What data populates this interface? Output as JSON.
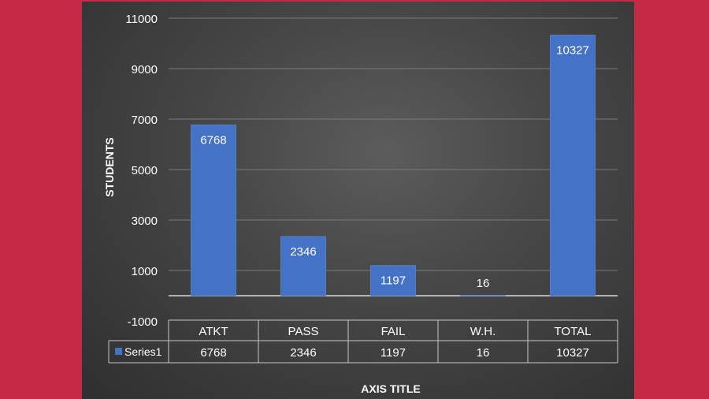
{
  "colors": {
    "background": "#c42a45",
    "panel": "#474747",
    "bar": "#4472c4",
    "text": "#ffffff",
    "grid": "#7a7a7a"
  },
  "chart_data": {
    "type": "bar",
    "categories": [
      "ATKT",
      "PASS",
      "FAIL",
      "W.H.",
      "TOTAL"
    ],
    "series": [
      {
        "name": "Series1",
        "values": [
          6768,
          2346,
          1197,
          16,
          10327
        ]
      }
    ],
    "ylabel": "STUDENTS",
    "xlabel": "AXIS TITLE",
    "ylim": [
      -1000,
      11000
    ],
    "yticks": [
      -1000,
      1000,
      3000,
      5000,
      7000,
      9000,
      11000
    ],
    "data_labels": true,
    "data_table": true,
    "grid": true,
    "legend": "data-table"
  }
}
